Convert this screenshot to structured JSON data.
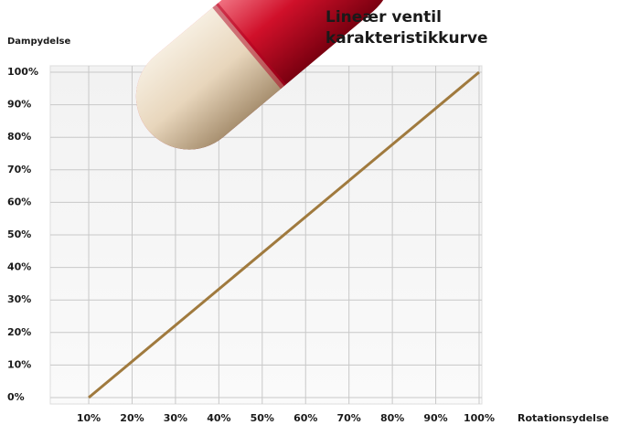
{
  "chart_data": {
    "type": "line",
    "title": [
      "Lineær ventil",
      "karakteristikkurve"
    ],
    "y_label": "Dampydelse",
    "x_label": "Rotationsydelse",
    "x": [
      10,
      100
    ],
    "series": [
      {
        "name": null,
        "color": "#a07a3e",
        "values": [
          0,
          100
        ]
      }
    ],
    "xlim": [
      0,
      100
    ],
    "xticks": [
      {
        "value": 10,
        "label": "10%"
      },
      {
        "value": 20,
        "label": "20%"
      },
      {
        "value": 30,
        "label": "30%"
      },
      {
        "value": 40,
        "label": "40%"
      },
      {
        "value": 50,
        "label": "50%"
      },
      {
        "value": 60,
        "label": "60%"
      },
      {
        "value": 70,
        "label": "70%"
      },
      {
        "value": 80,
        "label": "80%"
      },
      {
        "value": 90,
        "label": "90%"
      },
      {
        "value": 100,
        "label": "100%"
      }
    ],
    "ylim": [
      0,
      100
    ],
    "yticks": [
      {
        "value": 0,
        "label": "0%"
      },
      {
        "value": 10,
        "label": "10%"
      },
      {
        "value": 20,
        "label": "20%"
      },
      {
        "value": 30,
        "label": "30%"
      },
      {
        "value": 40,
        "label": "40%"
      },
      {
        "value": 50,
        "label": "50%"
      },
      {
        "value": 60,
        "label": "60%"
      },
      {
        "value": 70,
        "label": "70%"
      },
      {
        "value": 80,
        "label": "80%"
      },
      {
        "value": 90,
        "label": "90%"
      },
      {
        "value": 100,
        "label": "100%"
      }
    ],
    "grid": true
  }
}
